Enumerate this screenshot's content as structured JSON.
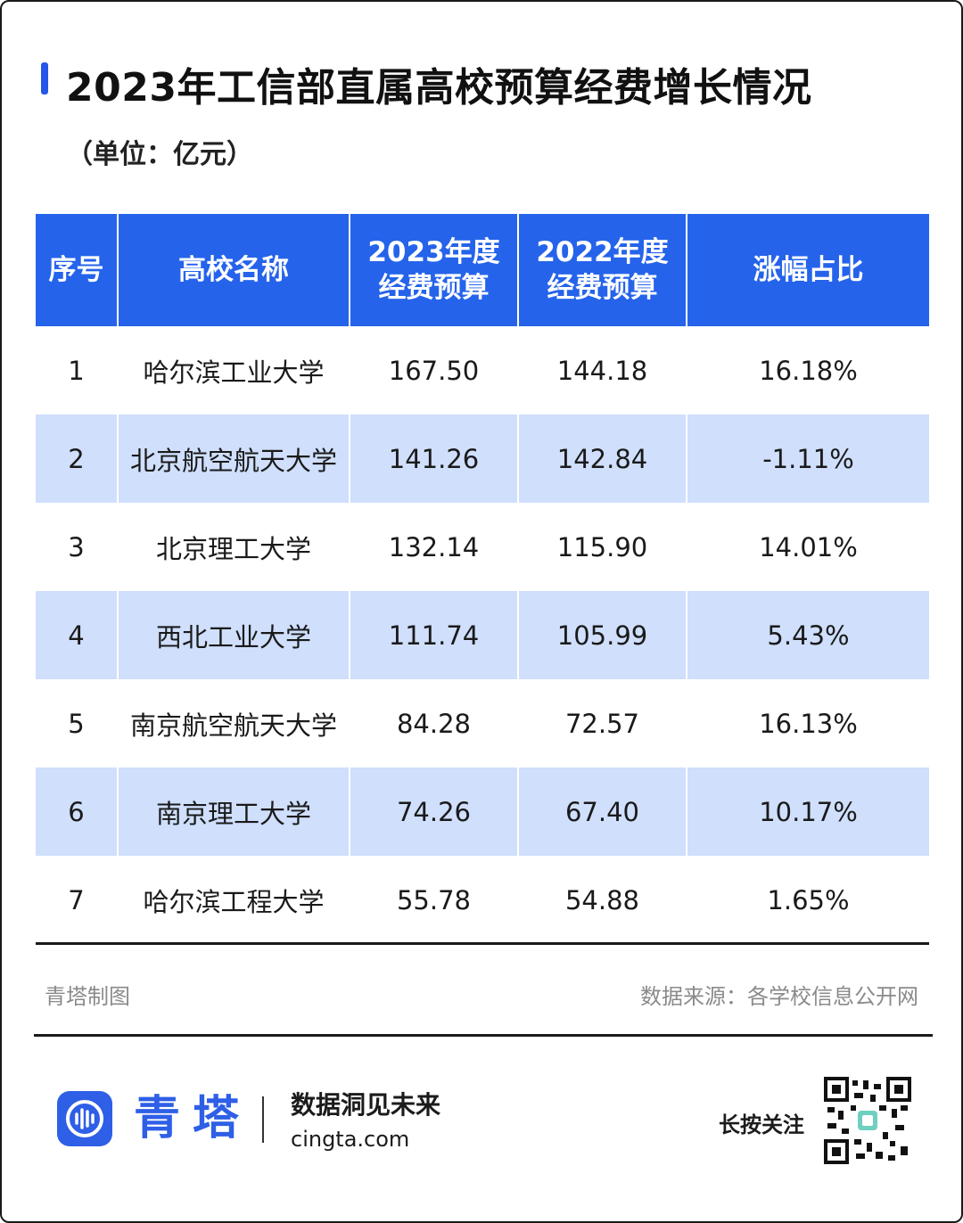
{
  "title": "2023年工信部直属高校预算经费增长情况",
  "unit": "（单位：亿元）",
  "colors": {
    "header_bg": "#2563eb",
    "header_text": "#ffffff",
    "alt_row_bg": "#cfdffc",
    "brand": "#2e5fe6",
    "title_accent": "#2456e8"
  },
  "chart_data": {
    "type": "table",
    "title": "2023年工信部直属高校预算经费增长情况",
    "unit": "（单位：亿元）",
    "columns": [
      "序号",
      "高校名称",
      "2023年度经费预算",
      "2022年度经费预算",
      "涨幅占比"
    ],
    "header_lines": [
      [
        "序号"
      ],
      [
        "高校名称"
      ],
      [
        "2023年度",
        "经费预算"
      ],
      [
        "2022年度",
        "经费预算"
      ],
      [
        "涨幅占比"
      ]
    ],
    "rows": [
      [
        "1",
        "哈尔滨工业大学",
        "167.50",
        "144.18",
        "16.18%"
      ],
      [
        "2",
        "北京航空航天大学",
        "141.26",
        "142.84",
        "-1.11%"
      ],
      [
        "3",
        "北京理工大学",
        "132.14",
        "115.90",
        "14.01%"
      ],
      [
        "4",
        "西北工业大学",
        "111.74",
        "105.99",
        "5.43%"
      ],
      [
        "5",
        "南京航空航天大学",
        "84.28",
        "72.57",
        "16.13%"
      ],
      [
        "6",
        "南京理工大学",
        "74.26",
        "67.40",
        "10.17%"
      ],
      [
        "7",
        "哈尔滨工程大学",
        "55.78",
        "54.88",
        "1.65%"
      ]
    ]
  },
  "credits": {
    "made_by": "青塔制图",
    "source": "数据来源：各学校信息公开网"
  },
  "footer": {
    "brand_name": "青塔",
    "slogan": "数据洞见未来",
    "site": "cingta.com",
    "follow": "长按关注",
    "logo_icon": "cingta-logo-icon",
    "qr_icon": "qr-code-icon"
  }
}
